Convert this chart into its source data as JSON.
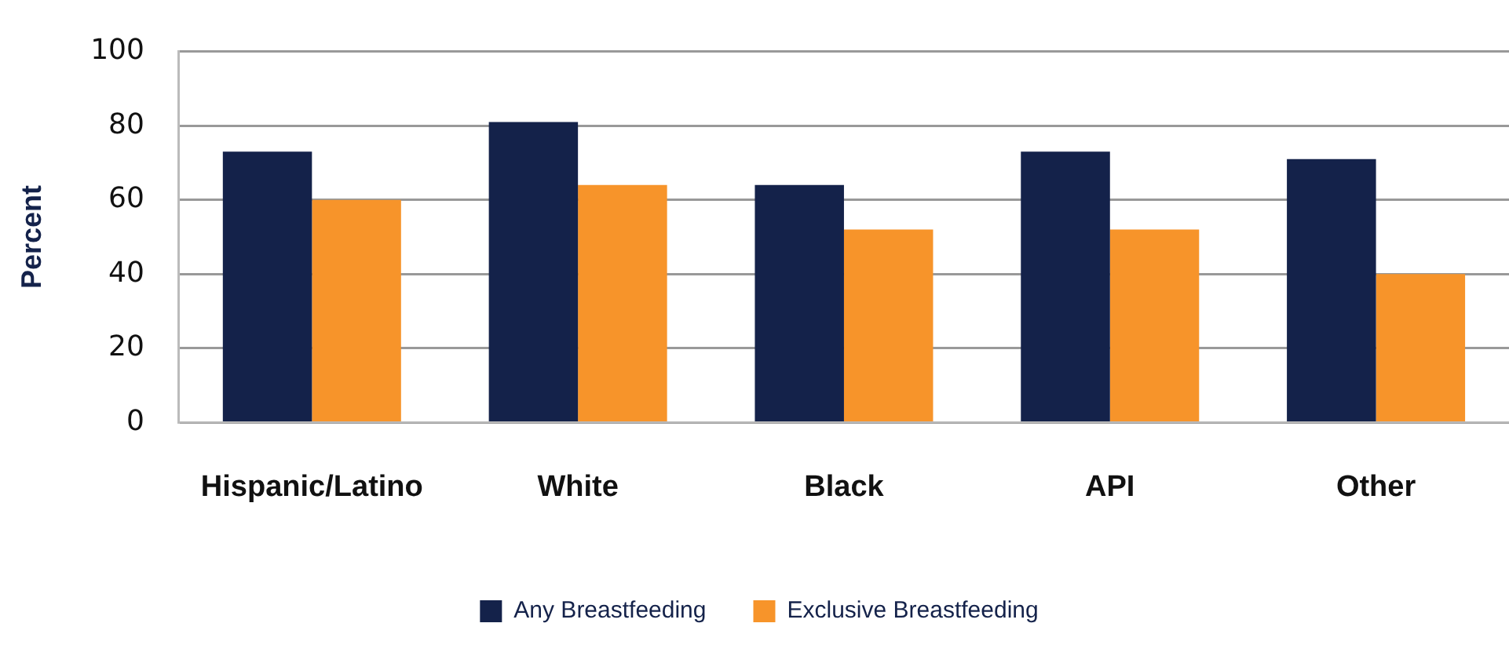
{
  "chart_data": {
    "type": "bar",
    "ylabel": "Percent",
    "categories": [
      "Hispanic/Latino",
      "White",
      "Black",
      "API",
      "Other"
    ],
    "series": [
      {
        "name": "Any Breastfeeding",
        "color": "#14224a",
        "values": [
          73,
          81,
          64,
          73,
          71
        ]
      },
      {
        "name": "Exclusive Breastfeeding",
        "color": "#f7942a",
        "values": [
          60,
          64,
          52,
          52,
          40
        ]
      }
    ],
    "ylim": [
      0,
      100
    ],
    "yticks": [
      0,
      20,
      40,
      60,
      80,
      100
    ],
    "grid": "y",
    "legend": "bottom"
  }
}
